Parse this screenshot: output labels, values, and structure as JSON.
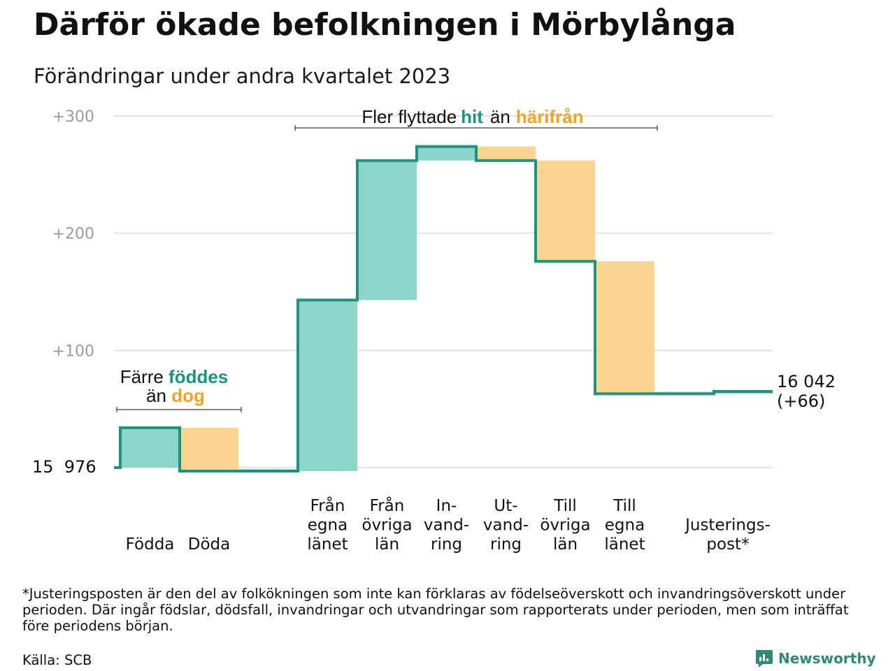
{
  "colors": {
    "increase": "#8dd4cb",
    "decrease": "#fbd48f",
    "line": "#1a9584",
    "grid": "#e2e2e2",
    "tick_text": "#9a9a9a",
    "teal_text": "#16967f",
    "orange_text": "#f3a320",
    "brand": "#2d8a7b"
  },
  "header": {
    "title": "Därför ökade befolkningen i Mörbylånga",
    "subtitle": "Förändringar under andra kvartalet 2023"
  },
  "chart_data": {
    "type": "bar",
    "subtype": "waterfall",
    "start_label": "15  976",
    "start_value": 15976,
    "end_label_lines": [
      "16 042",
      "(+66)"
    ],
    "end_value": 16042,
    "net_change": 66,
    "y_axis": {
      "ticks": [
        100,
        200,
        300
      ],
      "tick_labels": [
        "+100",
        "+200",
        "+300"
      ],
      "ylim": [
        0,
        300
      ],
      "grid": true
    },
    "steps": [
      {
        "label_lines": [
          "Födda"
        ],
        "change": 34
      },
      {
        "label_lines": [
          "Döda"
        ],
        "change": -37
      },
      {
        "label_lines": [
          ""
        ],
        "change": 0
      },
      {
        "label_lines": [
          "Från",
          "egna",
          "länet"
        ],
        "change": 146
      },
      {
        "label_lines": [
          "Från",
          "övriga",
          "län"
        ],
        "change": 119
      },
      {
        "label_lines": [
          "In-",
          "vand-",
          "ring"
        ],
        "change": 12
      },
      {
        "label_lines": [
          "Ut-",
          "vand-",
          "ring"
        ],
        "change": -12
      },
      {
        "label_lines": [
          "Till",
          "övriga",
          "län"
        ],
        "change": -86
      },
      {
        "label_lines": [
          "Till",
          "egna",
          "länet"
        ],
        "change": -113
      },
      {
        "label_lines": [
          ""
        ],
        "change": 0
      },
      {
        "label_lines": [
          "Justerings-",
          "post*"
        ],
        "change": 2
      }
    ],
    "annotations": {
      "births": {
        "line1_prefix": "Färre ",
        "line1_highlight": "föddes",
        "line2_prefix": "än ",
        "line2_highlight": "dog"
      },
      "migration": {
        "prefix": "Fler flyttade",
        "highlight1": "hit",
        "middle": "än",
        "highlight2": "härifrån"
      }
    }
  },
  "footer": {
    "footnote": "*Justeringsposten är den del av folkökningen som inte kan förklaras av födelseöverskott och invandringsöverskott under perioden. Där ingår födslar, dödsfall, invandringar och utvandringar som rapporterats under perioden, men som inträffat före periodens början.",
    "source": "Källa: SCB",
    "brand": "Newsworthy",
    "brand_icon": "newsworthy-logo-icon"
  }
}
